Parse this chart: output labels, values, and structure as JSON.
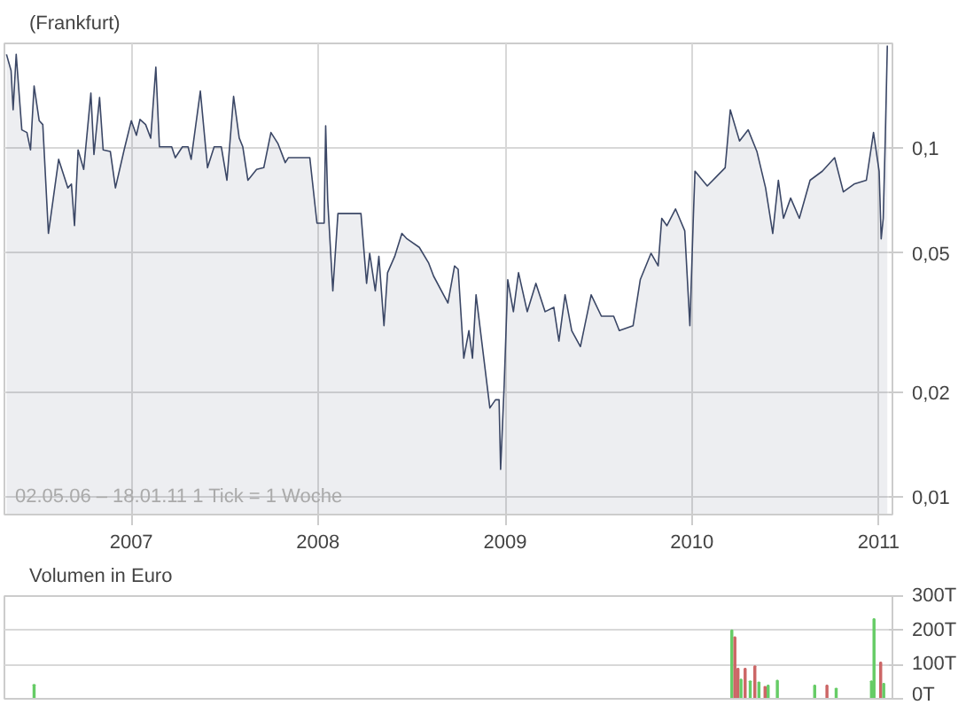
{
  "chart_data": [
    {
      "type": "area",
      "title": "(Frankfurt)",
      "log": "y",
      "grid": true,
      "line_style": "solid",
      "annotations": [
        "02.05.06 – 18.01.11   1 Tick = 1 Woche"
      ],
      "xlim": [
        "2006-04-28",
        "2011-01-28"
      ],
      "xticks": [
        {
          "value": "2007-01-01",
          "label": "2007"
        },
        {
          "value": "2008-01-01",
          "label": "2008"
        },
        {
          "value": "2009-01-01",
          "label": "2009"
        },
        {
          "value": "2010-01-01",
          "label": "2010"
        },
        {
          "value": "2011-01-01",
          "label": "2011"
        }
      ],
      "ylim": [
        0.0089,
        0.2
      ],
      "yticks": [
        {
          "value": 0.01,
          "label": "0,01"
        },
        {
          "value": 0.02,
          "label": "0,02"
        },
        {
          "value": 0.05,
          "label": "0,05"
        },
        {
          "value": 0.1,
          "label": "0,1"
        }
      ],
      "x": [
        "2006-05-02",
        "2006-05-11",
        "2006-05-15",
        "2006-05-21",
        "2006-06-01",
        "2006-06-11",
        "2006-06-18",
        "2006-06-25",
        "2006-07-05",
        "2006-07-12",
        "2006-07-23",
        "2006-08-12",
        "2006-08-30",
        "2006-09-06",
        "2006-09-12",
        "2006-09-19",
        "2006-09-30",
        "2006-10-14",
        "2006-10-20",
        "2006-10-31",
        "2006-11-07",
        "2006-11-21",
        "2006-12-01",
        "2006-12-18",
        "2007-01-01",
        "2007-01-11",
        "2007-01-18",
        "2007-01-29",
        "2007-02-08",
        "2007-02-18",
        "2007-02-25",
        "2007-03-21",
        "2007-03-28",
        "2007-04-11",
        "2007-04-22",
        "2007-04-28",
        "2007-05-16",
        "2007-05-30",
        "2007-06-12",
        "2007-06-26",
        "2007-07-07",
        "2007-07-20",
        "2007-07-31",
        "2007-08-07",
        "2007-08-17",
        "2007-09-03",
        "2007-09-17",
        "2007-10-01",
        "2007-10-15",
        "2007-10-29",
        "2007-11-04",
        "2007-12-16",
        "2007-12-30",
        "2008-01-13",
        "2008-01-16",
        "2008-01-20",
        "2008-01-30",
        "2008-02-09",
        "2008-03-25",
        "2008-04-05",
        "2008-04-11",
        "2008-04-22",
        "2008-04-29",
        "2008-05-09",
        "2008-05-16",
        "2008-05-30",
        "2008-06-13",
        "2008-06-23",
        "2008-07-17",
        "2008-08-04",
        "2008-08-14",
        "2008-09-11",
        "2008-09-24",
        "2008-10-01",
        "2008-10-12",
        "2008-10-22",
        "2008-10-29",
        "2008-11-05",
        "2008-12-02",
        "2008-12-13",
        "2008-12-20",
        "2008-12-23",
        "2008-12-30",
        "2009-01-06",
        "2009-01-17",
        "2009-01-27",
        "2009-02-13",
        "2009-03-02",
        "2009-03-20",
        "2009-04-06",
        "2009-04-16",
        "2009-04-28",
        "2009-05-11",
        "2009-05-28",
        "2009-06-18",
        "2009-07-08",
        "2009-08-01",
        "2009-08-12",
        "2009-09-08",
        "2009-09-22",
        "2009-10-13",
        "2009-10-27",
        "2009-11-03",
        "2009-11-13",
        "2009-11-30",
        "2009-12-18",
        "2009-12-28",
        "2010-01-04",
        "2010-01-07",
        "2010-01-31",
        "2010-02-18",
        "2010-03-07",
        "2010-03-17",
        "2010-04-04",
        "2010-04-21",
        "2010-05-08",
        "2010-05-25",
        "2010-06-08",
        "2010-06-19",
        "2010-06-29",
        "2010-07-13",
        "2010-07-30",
        "2010-08-20",
        "2010-09-13",
        "2010-10-07",
        "2010-10-24",
        "2010-11-14",
        "2010-12-08",
        "2010-12-22",
        "2011-01-02",
        "2011-01-06",
        "2011-01-10",
        "2011-01-14",
        "2011-01-18"
      ],
      "series": [
        {
          "color": "#3b4766",
          "values": [
            0.186,
            0.167,
            0.129,
            0.186,
            0.113,
            0.111,
            0.099,
            0.151,
            0.12,
            0.117,
            0.057,
            0.093,
            0.077,
            0.079,
            0.06,
            0.099,
            0.087,
            0.144,
            0.096,
            0.14,
            0.099,
            0.098,
            0.077,
            0.099,
            0.12,
            0.109,
            0.121,
            0.117,
            0.107,
            0.171,
            0.101,
            0.101,
            0.094,
            0.101,
            0.101,
            0.093,
            0.146,
            0.088,
            0.101,
            0.101,
            0.081,
            0.141,
            0.107,
            0.101,
            0.081,
            0.087,
            0.088,
            0.111,
            0.103,
            0.091,
            0.094,
            0.094,
            0.061,
            0.061,
            0.116,
            0.071,
            0.039,
            0.065,
            0.065,
            0.041,
            0.05,
            0.039,
            0.049,
            0.031,
            0.044,
            0.049,
            0.057,
            0.055,
            0.052,
            0.047,
            0.043,
            0.036,
            0.046,
            0.045,
            0.025,
            0.03,
            0.025,
            0.038,
            0.018,
            0.019,
            0.019,
            0.012,
            0.021,
            0.042,
            0.034,
            0.044,
            0.034,
            0.041,
            0.034,
            0.035,
            0.028,
            0.038,
            0.03,
            0.027,
            0.038,
            0.033,
            0.033,
            0.03,
            0.031,
            0.042,
            0.05,
            0.046,
            0.063,
            0.06,
            0.067,
            0.058,
            0.031,
            0.065,
            0.086,
            0.078,
            0.083,
            0.088,
            0.129,
            0.105,
            0.113,
            0.098,
            0.077,
            0.057,
            0.081,
            0.063,
            0.072,
            0.063,
            0.081,
            0.086,
            0.094,
            0.075,
            0.079,
            0.081,
            0.111,
            0.086,
            0.055,
            0.063,
            0.107,
            0.197
          ]
        }
      ]
    },
    {
      "type": "bar",
      "title": "Volumen in Euro",
      "grid": true,
      "tick_labels": "y",
      "xlim": [
        "2006-04-28",
        "2011-01-28"
      ],
      "ylim": [
        0,
        300
      ],
      "yticks": [
        {
          "value": 0,
          "label": "0T"
        },
        {
          "value": 100,
          "label": "100T"
        },
        {
          "value": 200,
          "label": "200T"
        },
        {
          "value": 300,
          "label": "300T"
        }
      ],
      "x": [
        "2006-06-25",
        "2010-03-20",
        "2010-03-26",
        "2010-04-01",
        "2010-04-07",
        "2010-04-15",
        "2010-04-25",
        "2010-05-04",
        "2010-05-12",
        "2010-05-24",
        "2010-05-30",
        "2010-06-17",
        "2010-08-29",
        "2010-09-22",
        "2010-10-10",
        "2010-12-18",
        "2010-12-23",
        "2011-01-05",
        "2011-01-11"
      ],
      "values": [
        41,
        200,
        180,
        88,
        56,
        88,
        51,
        95,
        48,
        35,
        39,
        53,
        39,
        39,
        30,
        51,
        233,
        106,
        44
      ],
      "colors": [
        "#66cc66",
        "#66cc66",
        "#cc6666",
        "#cc6666",
        "#66cc66",
        "#cc6666",
        "#66cc66",
        "#cc6666",
        "#66cc66",
        "#cc6666",
        "#66cc66",
        "#66cc66",
        "#66cc66",
        "#cc6666",
        "#66cc66",
        "#66cc66",
        "#66cc66",
        "#cc6666",
        "#66cc66"
      ]
    }
  ]
}
